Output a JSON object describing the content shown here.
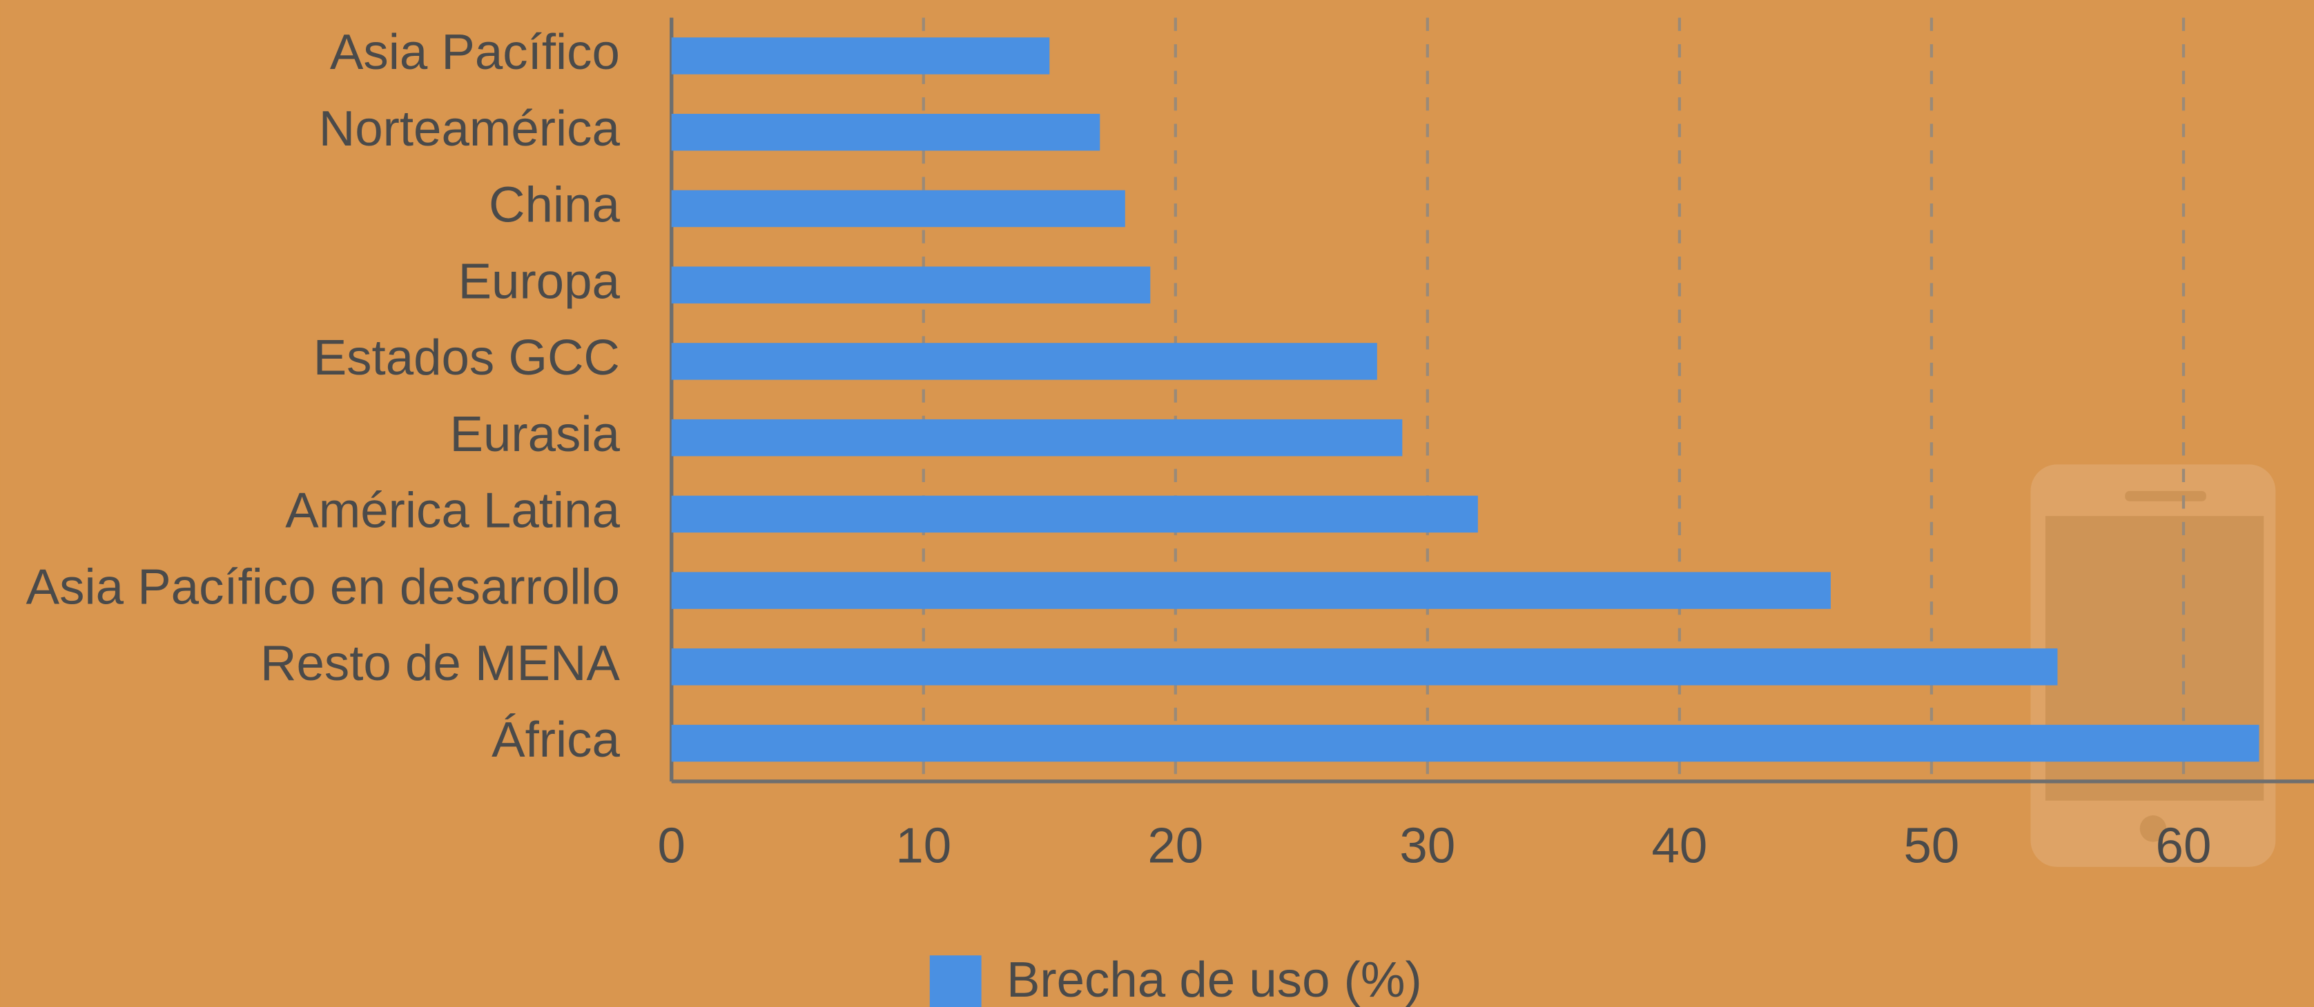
{
  "chart_data": {
    "type": "bar",
    "orientation": "horizontal",
    "categories": [
      "Asia Pacífico",
      "Norteamérica",
      "China",
      "Europa",
      "Estados GCC",
      "Eurasia",
      "América Latina",
      "Asia Pacífico en desarrollo",
      "Resto de MENA",
      "África"
    ],
    "series": [
      {
        "name": "Brecha de uso (%)",
        "color": "#4a90e2",
        "values": [
          15,
          17,
          18,
          19,
          28,
          29,
          32,
          46,
          55,
          63
        ]
      }
    ],
    "xlim": [
      0,
      65
    ],
    "xticks": [
      0,
      10,
      20,
      30,
      40,
      50,
      60
    ],
    "grid": true,
    "legend": "bottom"
  }
}
